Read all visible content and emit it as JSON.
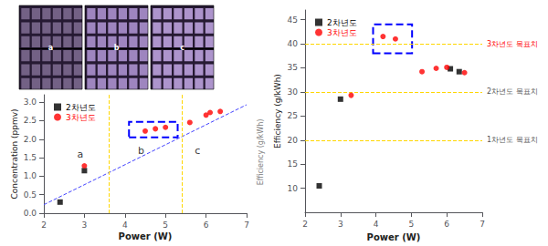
{
  "chart_data": [
    {
      "type": "scatter",
      "xlabel": "Power (W)",
      "ylabel": "Concentration (ppmv)",
      "xlim": [
        2,
        7
      ],
      "ylim": [
        0,
        3.2
      ],
      "xticks": [
        2,
        3,
        4,
        5,
        6,
        7
      ],
      "yticks": [
        {
          "value": 0.0,
          "label": "0.0"
        },
        0.5,
        {
          "value": 1.0,
          "label": "1.0"
        },
        1.5,
        {
          "value": 2.0,
          "label": "2.0"
        },
        2.5,
        {
          "value": 3.0,
          "label": "3.0"
        }
      ],
      "grid": false,
      "legend": "upper left",
      "series": [
        {
          "name": "2차년도",
          "color": "black",
          "marker": "square",
          "x": [
            2.4,
            3.0
          ],
          "values": [
            0.3,
            1.15
          ]
        },
        {
          "name": "3차년도",
          "color": "red",
          "marker": "circle",
          "x": [
            3.0,
            4.5,
            4.75,
            5.0,
            5.6,
            6.0,
            6.1,
            6.35
          ],
          "values": [
            1.28,
            2.22,
            2.28,
            2.32,
            2.45,
            2.65,
            2.72,
            2.75
          ]
        },
        {
          "type": "line",
          "line_style": "dashed",
          "color": "#4444FF",
          "x": [
            2.0,
            7.0
          ],
          "values": [
            0.23,
            2.93
          ]
        }
      ],
      "vlines": [
        3.6,
        5.4
      ],
      "vline_color": "#FFD700",
      "box": {
        "x": [
          4.1,
          5.3
        ],
        "y": [
          2.05,
          2.47
        ],
        "color": "blue"
      },
      "annotations": [
        {
          "text": "a",
          "x": 2.82,
          "y": 1.42
        },
        {
          "text": "b",
          "x": 4.32,
          "y": 1.52
        },
        {
          "text": "c",
          "x": 5.72,
          "y": 1.52
        }
      ],
      "side_label": {
        "text": "Efficiency (g/kWh)",
        "color": "gray"
      },
      "images": [
        {
          "label": "a",
          "color": "#736185"
        },
        {
          "label": "b",
          "color": "#9e85bf"
        },
        {
          "label": "c",
          "color": "#ad94cc"
        }
      ],
      "image_grid_color": "#261a33"
    },
    {
      "type": "scatter",
      "xlabel": "Power (W)",
      "ylabel": "Efficiency (g/kWh)",
      "xlim": [
        2,
        7
      ],
      "ylim": [
        5,
        47
      ],
      "xticks": [
        2,
        3,
        4,
        5,
        6,
        7
      ],
      "yticks": [
        10,
        15,
        20,
        25,
        30,
        35,
        40,
        45
      ],
      "grid": false,
      "legend": "upper left",
      "series": [
        {
          "name": "2차년도",
          "color": "black",
          "marker": "square",
          "x": [
            2.4,
            3.0,
            6.1,
            6.35
          ],
          "values": [
            10.5,
            28.5,
            34.8,
            34.2
          ]
        },
        {
          "name": "3차년도",
          "color": "red",
          "marker": "circle",
          "x": [
            3.3,
            4.2,
            4.55,
            5.3,
            5.7,
            6.0,
            6.5
          ],
          "values": [
            29.3,
            41.5,
            41.0,
            34.2,
            34.9,
            35.1,
            34.0
          ]
        }
      ],
      "hlines": [
        {
          "y": 40,
          "label": "3차년도 목표치",
          "label_color": "red"
        },
        {
          "y": 30,
          "label": "2차년도 목표치",
          "label_color": "#555555"
        },
        {
          "y": 20,
          "label": "1차년도 목표치",
          "label_color": "#555555"
        }
      ],
      "hline_color": "#FFD700",
      "box": {
        "x": [
          3.92,
          5.02
        ],
        "y": [
          38.0,
          44.0
        ],
        "color": "blue"
      }
    }
  ]
}
